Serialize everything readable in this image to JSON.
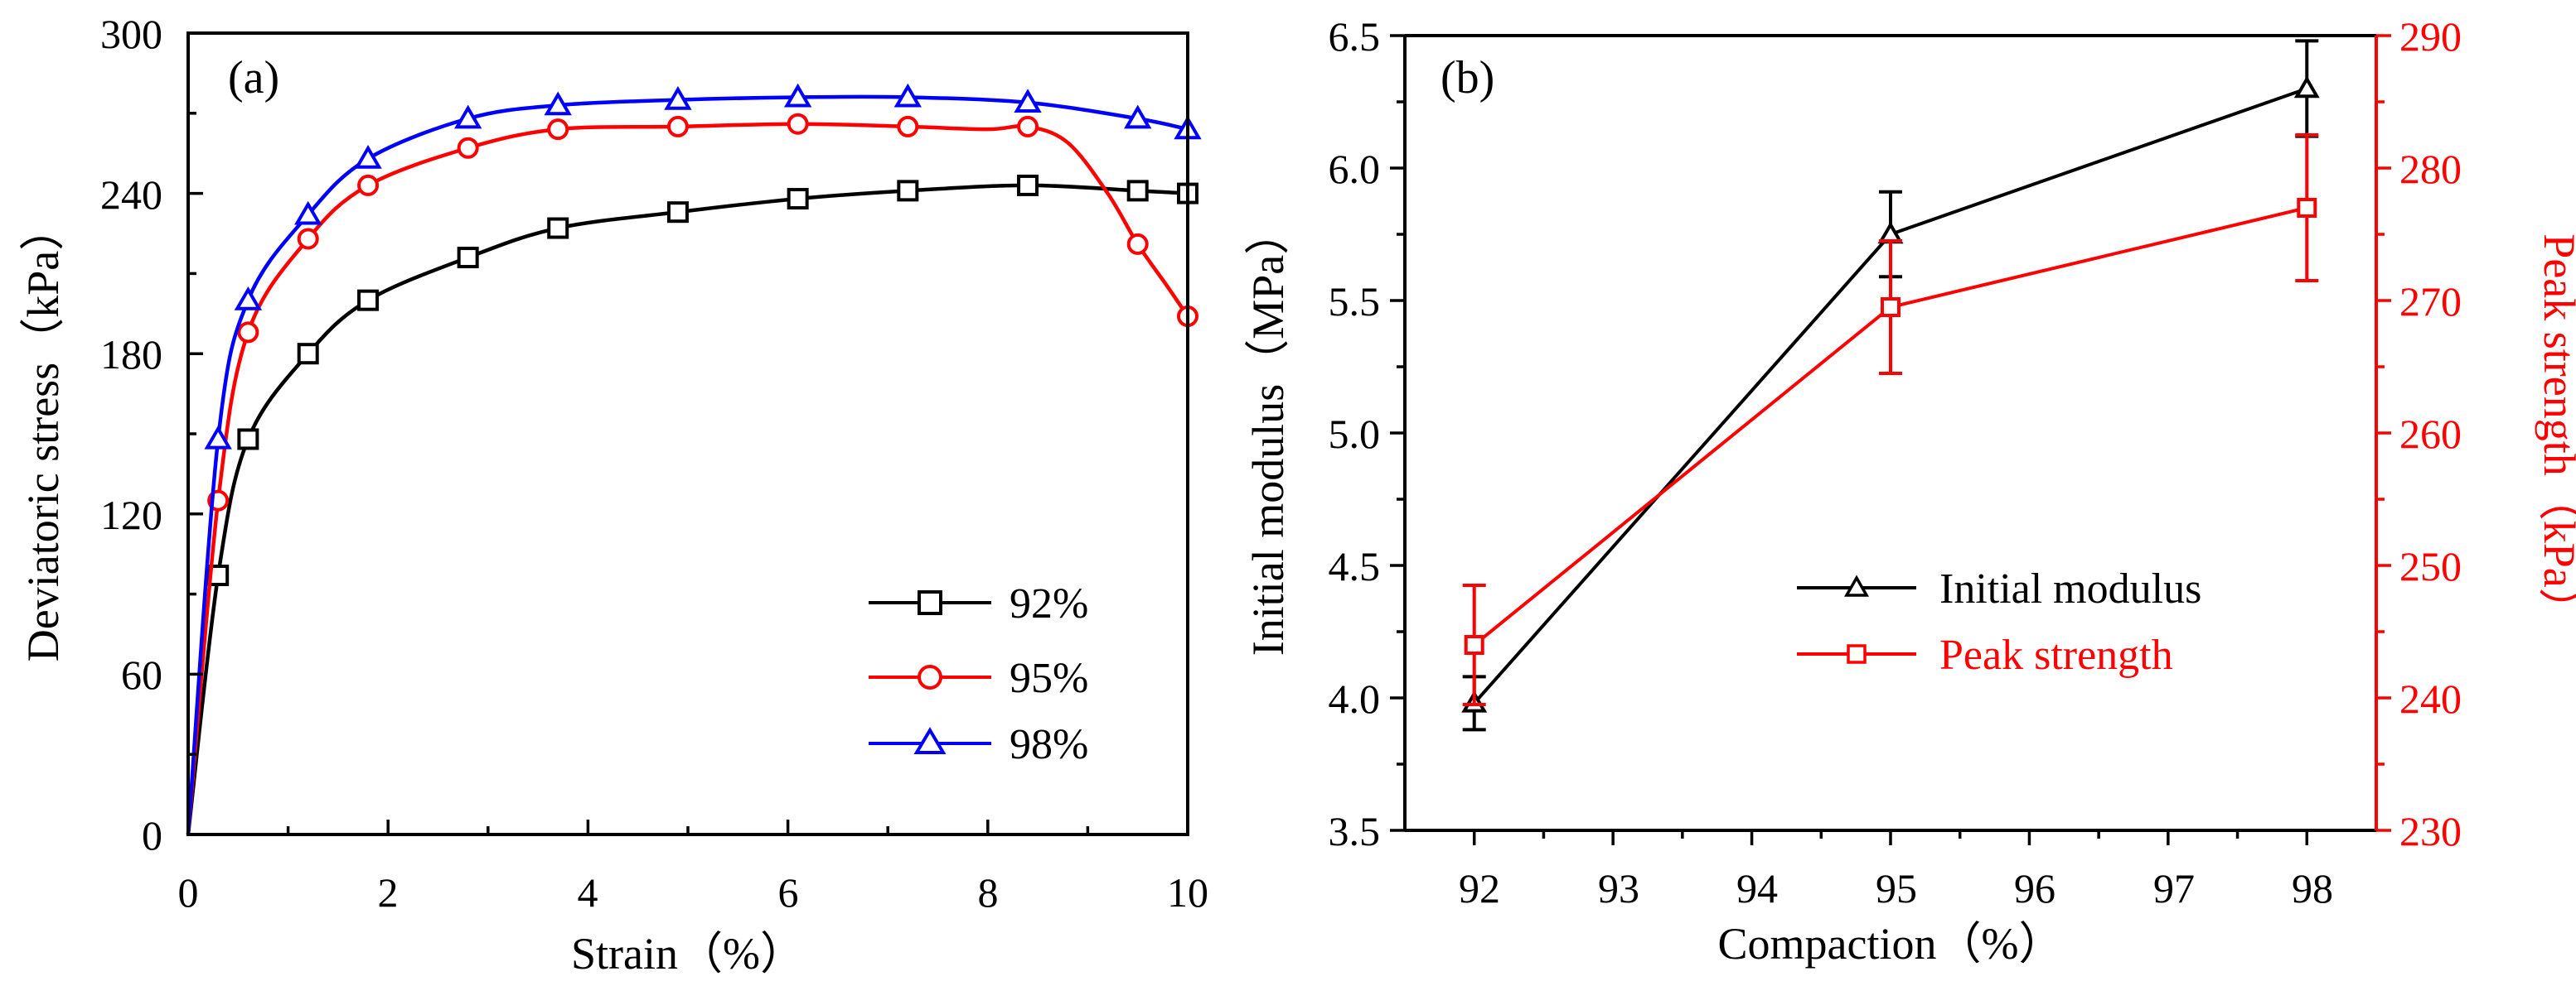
{
  "chart_data": [
    {
      "type": "line",
      "panel_label": "(a)",
      "xlabel": "Strain（%）",
      "ylabel": "Deviatoric stress（kPa）",
      "xlim": [
        0,
        10
      ],
      "ylim": [
        0,
        300
      ],
      "xticks": [
        "0",
        "2",
        "4",
        "6",
        "8",
        "10"
      ],
      "yticks": [
        "0",
        "60",
        "120",
        "180",
        "240",
        "300"
      ],
      "legend_position": "lower-right",
      "series": [
        {
          "name": "92%",
          "color": "#000000",
          "marker": "square",
          "x": [
            0,
            0.3,
            0.6,
            1.2,
            1.8,
            2.8,
            3.7,
            4.9,
            6.1,
            7.2,
            8.4,
            9.5,
            10.0
          ],
          "y": [
            0,
            97,
            148,
            180,
            200,
            216,
            227,
            233,
            238,
            241,
            243,
            241,
            240
          ],
          "marker_x": [
            0.3,
            0.6,
            1.2,
            1.8,
            2.8,
            3.7,
            4.9,
            6.1,
            7.2,
            8.4,
            9.5,
            10.0
          ],
          "marker_y": [
            97,
            148,
            180,
            200,
            216,
            227,
            233,
            238,
            241,
            243,
            241,
            240
          ]
        },
        {
          "name": "95%",
          "color": "#ff0000",
          "marker": "circle",
          "x": [
            0,
            0.3,
            0.6,
            1.2,
            1.8,
            2.8,
            3.7,
            4.9,
            6.1,
            7.2,
            8.0,
            8.4,
            8.8,
            9.2,
            9.5,
            9.8,
            10.0
          ],
          "y": [
            0,
            125,
            188,
            223,
            243,
            257,
            264,
            265,
            266,
            265,
            264,
            265,
            259,
            240,
            221,
            205,
            194
          ],
          "marker_x": [
            0.3,
            0.6,
            1.2,
            1.8,
            2.8,
            3.7,
            4.9,
            6.1,
            7.2,
            8.4,
            9.5,
            10.0
          ],
          "marker_y": [
            125,
            188,
            223,
            243,
            257,
            264,
            265,
            266,
            265,
            265,
            221,
            194
          ]
        },
        {
          "name": "98%",
          "color": "#0000ff",
          "marker": "triangle",
          "x": [
            0,
            0.3,
            0.6,
            1.2,
            1.8,
            2.8,
            3.7,
            4.9,
            6.1,
            7.2,
            8.4,
            9.5,
            10.0
          ],
          "y": [
            0,
            148,
            200,
            232,
            253,
            268,
            273,
            275,
            276,
            276,
            274,
            268,
            264
          ],
          "marker_x": [
            0.3,
            0.6,
            1.2,
            1.8,
            2.8,
            3.7,
            4.9,
            6.1,
            7.2,
            8.4,
            9.5,
            10.0
          ],
          "marker_y": [
            148,
            200,
            232,
            253,
            268,
            273,
            275,
            276,
            276,
            274,
            268,
            264
          ]
        }
      ]
    },
    {
      "type": "line",
      "panel_label": "(b)",
      "xlabel": "Compaction（%）",
      "ylabel": "Initial modulus（MPa）",
      "y2label": "Peak strength（kPa）",
      "xlim": [
        91.5,
        98.5
      ],
      "ylim": [
        3.5,
        6.5
      ],
      "y2lim": [
        230,
        290
      ],
      "xticks": [
        "92",
        "93",
        "94",
        "95",
        "96",
        "97",
        "98"
      ],
      "yticks": [
        "3.5",
        "4.0",
        "4.5",
        "5.0",
        "5.5",
        "6.0",
        "6.5"
      ],
      "y2ticks": [
        "230",
        "240",
        "250",
        "260",
        "270",
        "280",
        "290"
      ],
      "legend_position": "lower-center",
      "series": [
        {
          "name": "Initial modulus",
          "color": "#000000",
          "marker": "triangle",
          "axis": "left",
          "x": [
            92,
            95,
            98
          ],
          "y": [
            3.98,
            5.75,
            6.3
          ],
          "error": [
            0.1,
            0.16,
            0.18
          ]
        },
        {
          "name": "Peak strength",
          "color": "#ff0000",
          "marker": "square",
          "axis": "right",
          "x": [
            92,
            95,
            98
          ],
          "y": [
            244,
            269.5,
            277
          ],
          "error": [
            4.5,
            5,
            5.5
          ]
        }
      ]
    }
  ]
}
